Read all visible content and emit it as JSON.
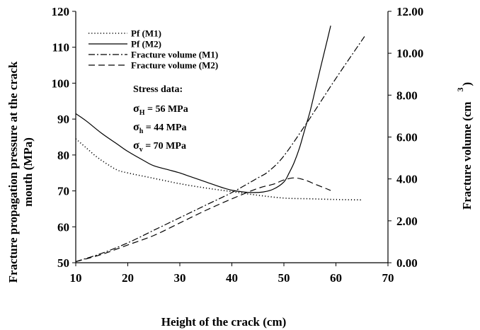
{
  "chart_data": {
    "type": "line",
    "xlabel": "Height of the crack (cm)",
    "ylabel_left_line1": "Fracture propagation pressure at the crack",
    "ylabel_left_line2": "mouth (MPa)",
    "ylabel_right": "Fracture volume (cm",
    "ylabel_right_superscript": "3",
    "ylabel_right_close": ")",
    "xlim": [
      10,
      70
    ],
    "xticks": [
      "10",
      "20",
      "30",
      "40",
      "50",
      "60",
      "70"
    ],
    "ylim_left": [
      50,
      120
    ],
    "yticks_left": [
      "50",
      "60",
      "70",
      "80",
      "90",
      "100",
      "110",
      "120"
    ],
    "ylim_right": [
      0,
      12
    ],
    "yticks_right": [
      "0.00",
      "2.00",
      "4.00",
      "6.00",
      "8.00",
      "10.00",
      "12.00"
    ],
    "legend_position": "top-left",
    "series": [
      {
        "name": "Pf (M1)",
        "axis": "left",
        "dash": "dotted",
        "x": [
          10,
          12,
          14,
          16,
          18,
          20,
          25,
          30,
          35,
          40,
          45,
          50,
          55,
          60,
          65
        ],
        "y": [
          84.5,
          82,
          79.5,
          77.5,
          75.8,
          75,
          73.5,
          72,
          70.8,
          69.8,
          68.8,
          68,
          67.8,
          67.6,
          67.5
        ]
      },
      {
        "name": "Pf (M2)",
        "axis": "left",
        "dash": "solid",
        "x": [
          10,
          12,
          15,
          18,
          20,
          23,
          25,
          28,
          30,
          32,
          35,
          38,
          40,
          43,
          46,
          48,
          50,
          51,
          52,
          53,
          54,
          55,
          56,
          57,
          58,
          59
        ],
        "y": [
          91.5,
          89.5,
          86,
          83,
          81,
          78.5,
          77,
          75.8,
          75,
          74,
          72.5,
          71,
          70.2,
          69.6,
          69.7,
          70.5,
          72.5,
          75,
          78,
          82,
          87,
          92,
          98,
          104,
          110,
          116
        ]
      },
      {
        "name": "Fracture volume (M1)",
        "axis": "right",
        "dash": "dashdot",
        "x": [
          10,
          15,
          20,
          25,
          30,
          35,
          40,
          45,
          47,
          50,
          55,
          60,
          65.5
        ],
        "y": [
          0.05,
          0.45,
          0.95,
          1.55,
          2.15,
          2.75,
          3.35,
          4.05,
          4.35,
          5.1,
          6.9,
          8.8,
          10.8
        ]
      },
      {
        "name": "Fracture volume (M2)",
        "axis": "right",
        "dash": "dashed",
        "x": [
          10,
          15,
          20,
          25,
          30,
          35,
          40,
          45,
          48,
          50,
          52,
          54,
          56,
          58,
          59
        ],
        "y": [
          0.05,
          0.4,
          0.85,
          1.3,
          1.9,
          2.5,
          3.05,
          3.55,
          3.75,
          3.95,
          4.05,
          3.95,
          3.75,
          3.55,
          3.45
        ]
      }
    ],
    "annotations": {
      "heading": "Stress data:",
      "lines": [
        {
          "symbol": "σ",
          "sub": "H",
          "text": " = 56 MPa"
        },
        {
          "symbol": "σ",
          "sub": "h",
          "text": " = 44 MPa"
        },
        {
          "symbol": "σ",
          "sub": "v",
          "text": " = 70  MPa"
        }
      ]
    }
  }
}
